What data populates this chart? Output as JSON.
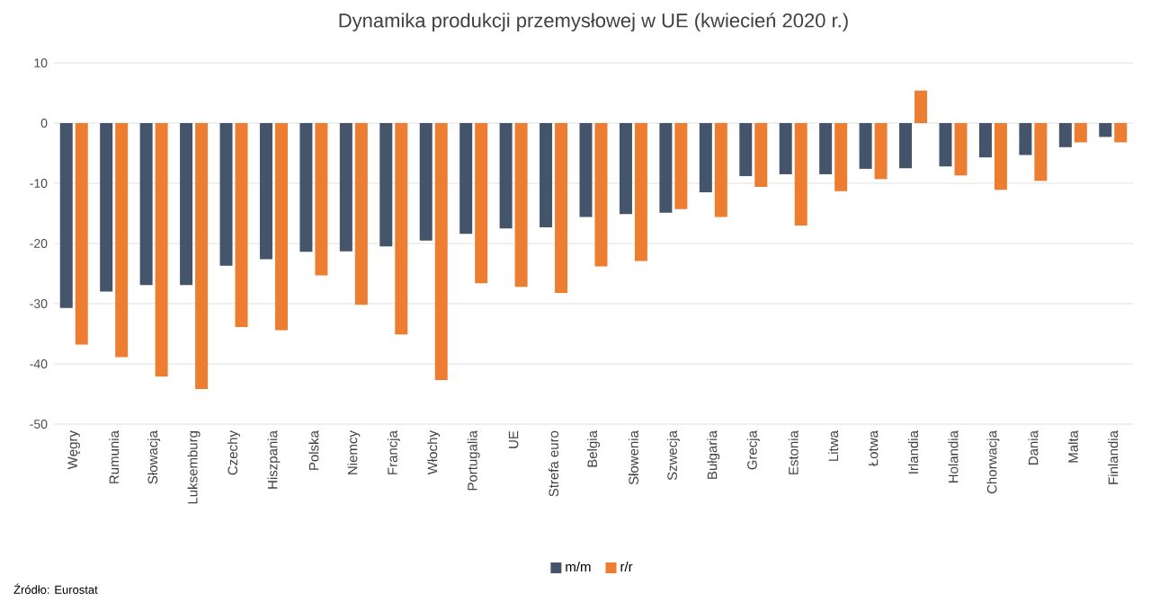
{
  "chart_data": {
    "type": "bar",
    "title": "Dynamika produkcji przemysłowej w UE (kwiecień 2020 r.)",
    "categories": [
      "Węgry",
      "Rumunia",
      "Słowacja",
      "Luksemburg",
      "Czechy",
      "Hiszpania",
      "Polska",
      "Niemcy",
      "Francja",
      "Włochy",
      "Portugalia",
      "UE",
      "Strefa euro",
      "Belgia",
      "Słowenia",
      "Szwecja",
      "Bułgaria",
      "Grecja",
      "Estonia",
      "Litwa",
      "Łotwa",
      "Irlandia",
      "Holandia",
      "Chorwacja",
      "Dania",
      "Malta",
      "Finlandia"
    ],
    "series": [
      {
        "name": "m/m",
        "color": "#44546a",
        "values": [
          -30.7,
          -28.0,
          -26.9,
          -26.9,
          -23.7,
          -22.6,
          -21.4,
          -21.3,
          -20.5,
          -19.5,
          -18.4,
          -17.5,
          -17.3,
          -15.6,
          -15.1,
          -14.9,
          -11.5,
          -8.8,
          -8.5,
          -8.5,
          -7.6,
          -7.5,
          -7.2,
          -5.7,
          -5.3,
          -4.0,
          -2.3
        ]
      },
      {
        "name": "r/r",
        "color": "#ed7d31",
        "values": [
          -36.8,
          -38.9,
          -42.1,
          -44.2,
          -33.9,
          -34.4,
          -25.3,
          -30.2,
          -35.1,
          -42.7,
          -26.6,
          -27.2,
          -28.2,
          -23.8,
          -22.9,
          -14.3,
          -15.6,
          -10.6,
          -17.0,
          -11.3,
          -9.3,
          5.4,
          -8.7,
          -11.1,
          -9.6,
          -3.2,
          -3.2
        ]
      }
    ],
    "ylim": [
      -50,
      10
    ],
    "yticks": [
      -50,
      -40,
      -30,
      -20,
      -10,
      0,
      10
    ],
    "grid": "y",
    "legend": "bottom",
    "annotations": [
      "Źródło: Eurostat"
    ]
  }
}
